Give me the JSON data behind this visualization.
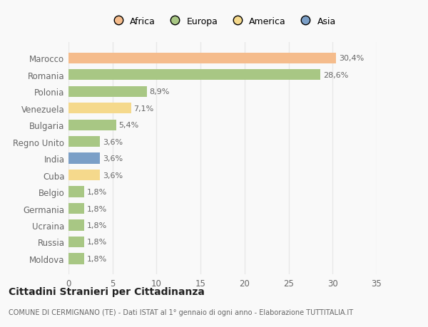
{
  "countries": [
    "Marocco",
    "Romania",
    "Polonia",
    "Venezuela",
    "Bulgaria",
    "Regno Unito",
    "India",
    "Cuba",
    "Belgio",
    "Germania",
    "Ucraina",
    "Russia",
    "Moldova"
  ],
  "values": [
    30.4,
    28.6,
    8.9,
    7.1,
    5.4,
    3.6,
    3.6,
    3.6,
    1.8,
    1.8,
    1.8,
    1.8,
    1.8
  ],
  "labels": [
    "30,4%",
    "28,6%",
    "8,9%",
    "7,1%",
    "5,4%",
    "3,6%",
    "3,6%",
    "3,6%",
    "1,8%",
    "1,8%",
    "1,8%",
    "1,8%",
    "1,8%"
  ],
  "colors": [
    "#F5BC8C",
    "#A8C784",
    "#A8C784",
    "#F5D98C",
    "#A8C784",
    "#A8C784",
    "#7B9FC7",
    "#F5D98C",
    "#A8C784",
    "#A8C784",
    "#A8C784",
    "#A8C784",
    "#A8C784"
  ],
  "legend_labels": [
    "Africa",
    "Europa",
    "America",
    "Asia"
  ],
  "legend_colors": [
    "#F5BC8C",
    "#A8C784",
    "#F5D98C",
    "#7B9FC7"
  ],
  "title": "Cittadini Stranieri per Cittadinanza",
  "subtitle": "COMUNE DI CERMIGNANO (TE) - Dati ISTAT al 1° gennaio di ogni anno - Elaborazione TUTTITALIA.IT",
  "xlim": [
    0,
    35
  ],
  "xticks": [
    0,
    5,
    10,
    15,
    20,
    25,
    30,
    35
  ],
  "background_color": "#f9f9f9",
  "grid_color": "#e8e8e8",
  "bar_height": 0.65
}
